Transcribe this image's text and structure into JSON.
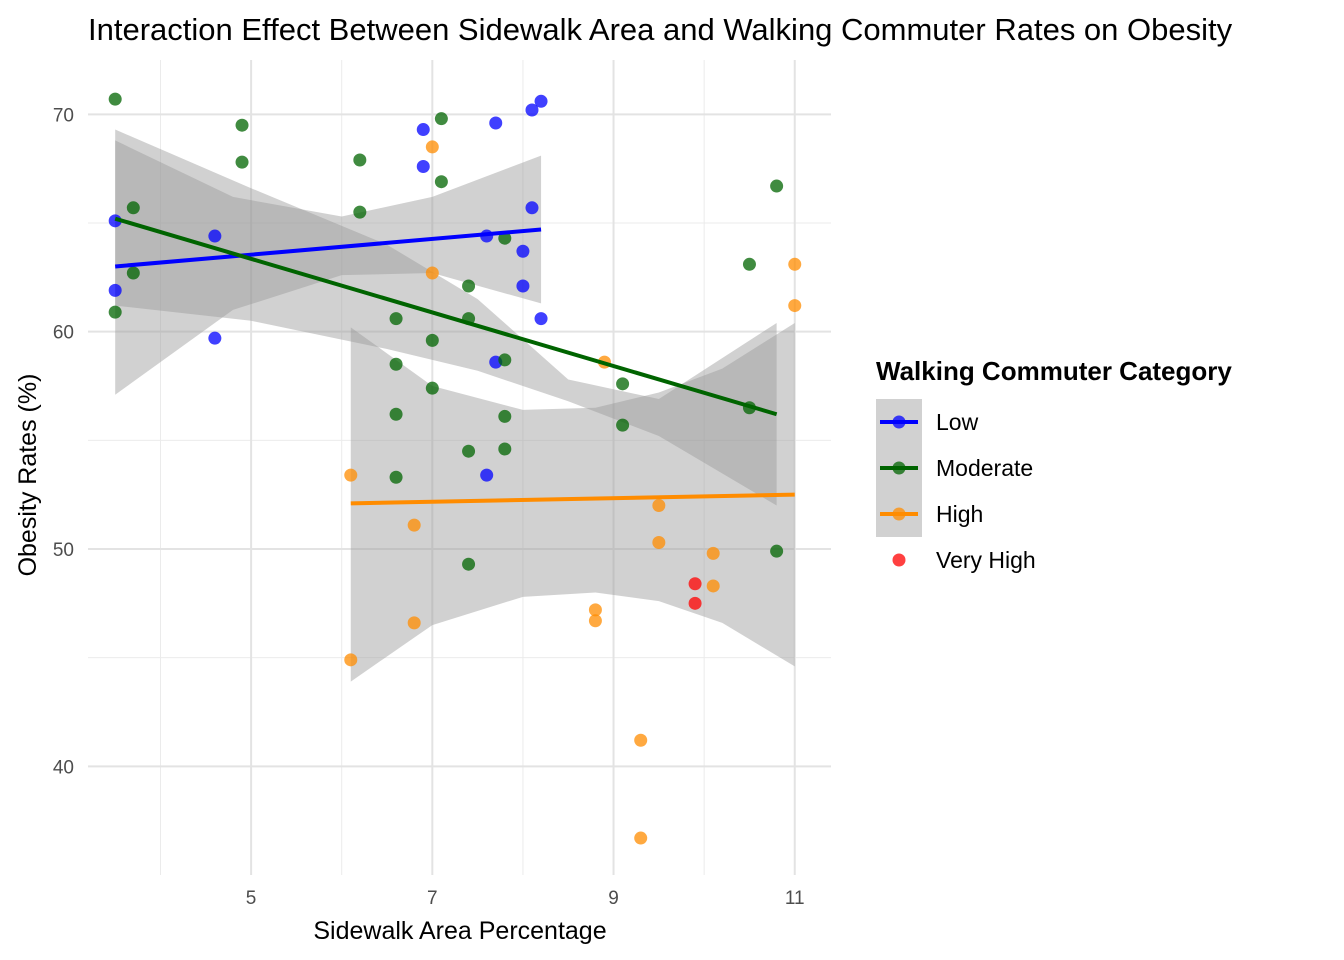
{
  "chart_data": {
    "type": "scatter",
    "title": "Interaction Effect Between Sidewalk Area and Walking Commuter Rates on Obesity",
    "xlabel": "Sidewalk Area Percentage",
    "ylabel": "Obesity Rates (%)",
    "xlim": [
      3.2,
      11.4
    ],
    "ylim": [
      35,
      72.5
    ],
    "x_ticks": [
      5,
      7,
      9,
      11
    ],
    "y_ticks": [
      40,
      50,
      60,
      70
    ],
    "grid": true,
    "legend": {
      "title": "Walking Commuter Category",
      "position": "right"
    },
    "series": [
      {
        "name": "Low",
        "color": "#0000ff",
        "points": [
          [
            3.5,
            65.1
          ],
          [
            3.5,
            61.9
          ],
          [
            4.6,
            64.4
          ],
          [
            4.6,
            59.7
          ],
          [
            6.9,
            69.3
          ],
          [
            6.9,
            67.6
          ],
          [
            7.7,
            69.6
          ],
          [
            8.1,
            70.2
          ],
          [
            8.2,
            70.6
          ],
          [
            8.1,
            65.7
          ],
          [
            7.6,
            64.4
          ],
          [
            8.0,
            63.7
          ],
          [
            8.0,
            62.1
          ],
          [
            8.2,
            60.6
          ],
          [
            7.7,
            58.6
          ],
          [
            7.6,
            53.4
          ]
        ],
        "fit": {
          "x": [
            3.5,
            8.2
          ],
          "y": [
            63.0,
            64.7
          ]
        },
        "ci": {
          "x": [
            3.5,
            4.8,
            6.0,
            7.0,
            8.2
          ],
          "lower": [
            57.1,
            61.0,
            62.6,
            62.7,
            61.3
          ],
          "upper": [
            68.8,
            66.2,
            65.3,
            66.2,
            68.1
          ]
        }
      },
      {
        "name": "Moderate",
        "color": "#006400",
        "points": [
          [
            3.5,
            70.7
          ],
          [
            3.5,
            60.9
          ],
          [
            3.7,
            65.7
          ],
          [
            3.7,
            62.7
          ],
          [
            4.9,
            69.5
          ],
          [
            4.9,
            67.8
          ],
          [
            6.2,
            67.9
          ],
          [
            6.2,
            65.5
          ],
          [
            6.6,
            60.6
          ],
          [
            6.6,
            58.5
          ],
          [
            6.6,
            56.2
          ],
          [
            6.6,
            53.3
          ],
          [
            7.0,
            59.6
          ],
          [
            7.0,
            57.4
          ],
          [
            7.1,
            69.8
          ],
          [
            7.1,
            66.9
          ],
          [
            7.4,
            62.1
          ],
          [
            7.4,
            60.6
          ],
          [
            7.4,
            54.5
          ],
          [
            7.4,
            49.3
          ],
          [
            7.8,
            64.3
          ],
          [
            7.8,
            58.7
          ],
          [
            7.8,
            56.1
          ],
          [
            7.8,
            54.6
          ],
          [
            9.1,
            57.6
          ],
          [
            9.1,
            55.7
          ],
          [
            10.5,
            63.1
          ],
          [
            10.5,
            56.5
          ],
          [
            10.8,
            66.7
          ],
          [
            10.8,
            49.9
          ]
        ],
        "fit": {
          "x": [
            3.5,
            10.8
          ],
          "y": [
            65.2,
            56.2
          ]
        },
        "ci": {
          "x": [
            3.5,
            5.0,
            6.5,
            7.5,
            8.5,
            9.5,
            10.8
          ],
          "lower": [
            61.2,
            60.5,
            59.2,
            58.2,
            56.8,
            55.2,
            52.0
          ],
          "upper": [
            69.3,
            66.6,
            64.0,
            61.5,
            57.8,
            56.9,
            60.4
          ]
        }
      },
      {
        "name": "High",
        "color": "#ff8c00",
        "points": [
          [
            6.1,
            53.4
          ],
          [
            6.1,
            44.9
          ],
          [
            6.8,
            51.1
          ],
          [
            6.8,
            46.6
          ],
          [
            7.0,
            68.5
          ],
          [
            7.0,
            62.7
          ],
          [
            8.8,
            47.2
          ],
          [
            8.8,
            46.7
          ],
          [
            8.9,
            58.6
          ],
          [
            9.3,
            41.2
          ],
          [
            9.3,
            36.7
          ],
          [
            9.5,
            52.0
          ],
          [
            9.5,
            50.3
          ],
          [
            10.1,
            49.8
          ],
          [
            10.1,
            48.3
          ],
          [
            11.0,
            63.1
          ],
          [
            11.0,
            61.2
          ]
        ],
        "fit": {
          "x": [
            6.1,
            11.0
          ],
          "y": [
            52.1,
            52.5
          ]
        },
        "ci": {
          "x": [
            6.1,
            7.0,
            8.0,
            8.8,
            9.5,
            10.2,
            11.0
          ],
          "lower": [
            43.9,
            46.5,
            47.8,
            48.0,
            47.6,
            46.6,
            44.6
          ],
          "upper": [
            60.2,
            57.5,
            56.4,
            56.5,
            57.2,
            58.3,
            60.4
          ]
        }
      },
      {
        "name": "Very High",
        "color": "#ff0000",
        "points": [
          [
            9.9,
            48.4
          ],
          [
            9.9,
            47.5
          ]
        ]
      }
    ]
  }
}
